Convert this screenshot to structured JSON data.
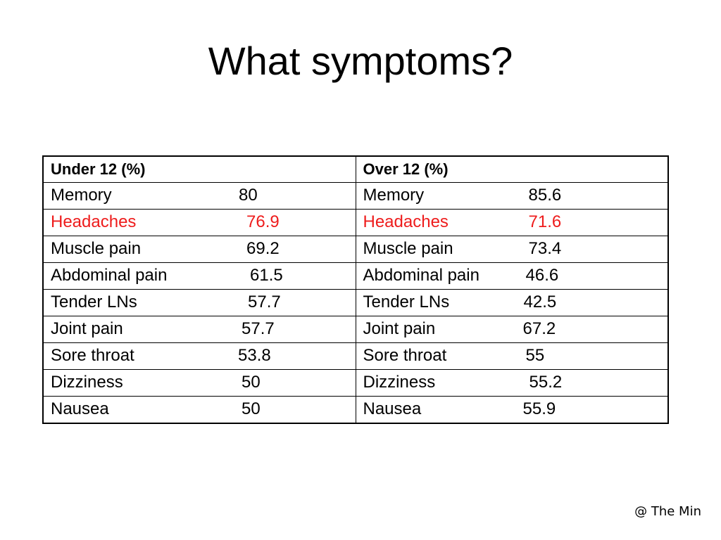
{
  "title": "What symptoms?",
  "table": {
    "headers": [
      "Under 12 (%)",
      "Over 12 (%)"
    ],
    "highlight_color": "#ee1c1c",
    "rows": [
      {
        "under_label": "Memory",
        "under_value": "80",
        "over_label": "Memory",
        "over_value": "85.6",
        "highlight": false
      },
      {
        "under_label": "Headaches",
        "under_value": "76.9",
        "over_label": "Headaches",
        "over_value": "71.6",
        "highlight": true
      },
      {
        "under_label": "Muscle pain",
        "under_value": "69.2",
        "over_label": "Muscle pain",
        "over_value": "73.4",
        "highlight": false
      },
      {
        "under_label": "Abdominal pain",
        "under_value": "61.5",
        "over_label": "Abdominal pain",
        "over_value": "46.6",
        "highlight": false
      },
      {
        "under_label": "Tender LNs",
        "under_value": "57.7",
        "over_label": "Tender LNs",
        "over_value": "42.5",
        "highlight": false
      },
      {
        "under_label": "Joint pain",
        "under_value": "57.7",
        "over_label": "Joint pain",
        "over_value": "67.2",
        "highlight": false
      },
      {
        "under_label": "Sore throat",
        "under_value": "53.8",
        "over_label": "Sore throat",
        "over_value": "55",
        "highlight": false
      },
      {
        "under_label": "Dizziness",
        "under_value": "50",
        "over_label": "Dizziness",
        "over_value": "55.2",
        "highlight": false
      },
      {
        "under_label": "Nausea",
        "under_value": "50",
        "over_label": "Nausea",
        "over_value": "55.9",
        "highlight": false
      }
    ]
  },
  "watermark": "@ The Min"
}
